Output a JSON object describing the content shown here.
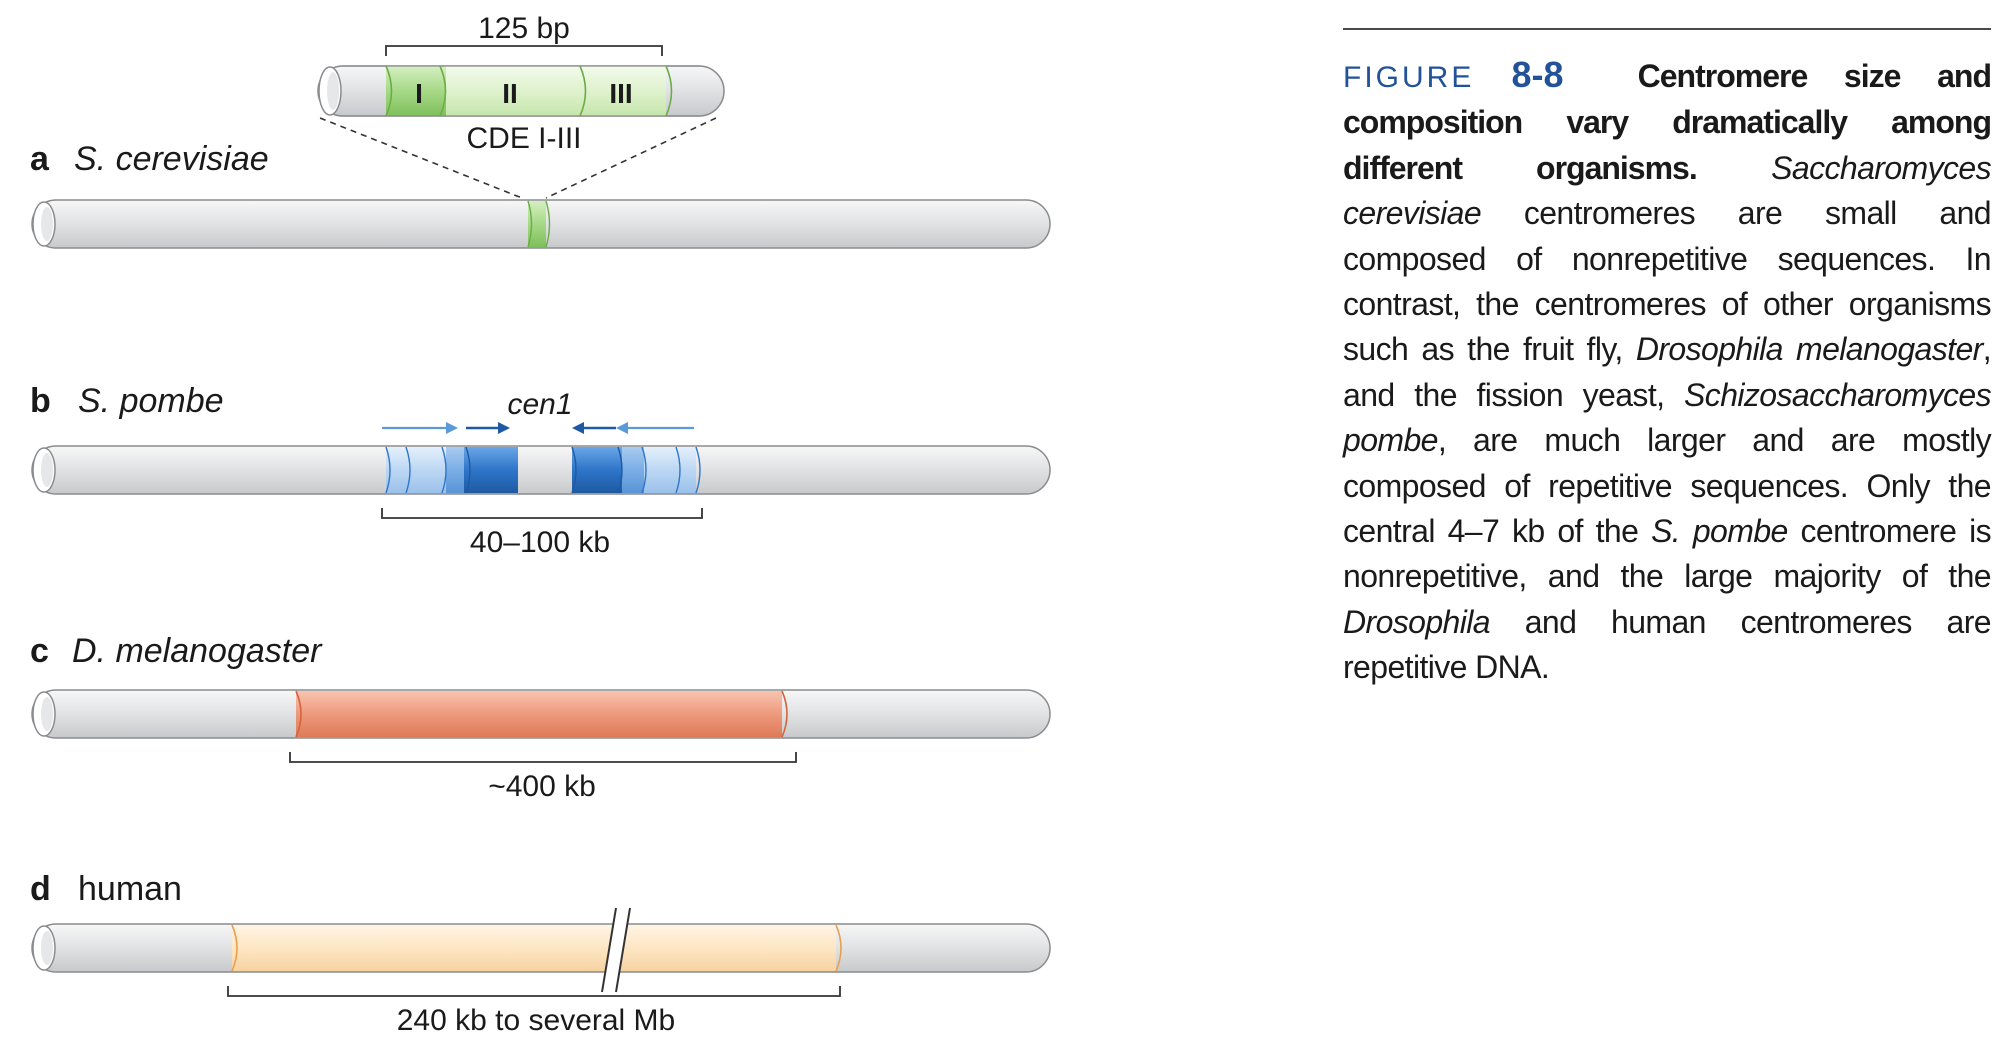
{
  "panels": {
    "a": {
      "letter": "a",
      "organism": "S. cerevisiae",
      "bracket": "125 bp",
      "region": "CDE I-III",
      "cde": [
        "I",
        "II",
        "III"
      ]
    },
    "b": {
      "letter": "b",
      "organism": "S. pombe",
      "region": "cen1",
      "bracket": "40–100 kb"
    },
    "c": {
      "letter": "c",
      "organism": "D. melanogaster",
      "bracket": "~400 kb"
    },
    "d": {
      "letter": "d",
      "organism": "human",
      "bracket": "240 kb to several Mb"
    }
  },
  "caption": {
    "figure_label": "FIGURE",
    "figure_number": "8-8",
    "title": "Centromere size and composition vary dramatically among different organisms.",
    "s1_species": "Saccharomyces cerevisiae",
    "s1_rest": "centromeres are small and composed of nonrepetitive sequences. In contrast, the centromeres of other organisms such as the fruit fly,",
    "s2_species": "Drosophila melanogaster",
    "s2_mid": ", and the fission yeast,",
    "s2_species2": "Schizosaccharomyces pombe",
    "s2_rest": ", are much larger and are mostly composed of repetitive sequences. Only the central 4–7 kb of the",
    "s3_species": "S. pombe",
    "s3_mid": "centromere is nonrepetitive, and the large majority of the",
    "s3_species2": "Drosophila",
    "s3_rest": "and human centromeres are repetitive DNA."
  },
  "colors": {
    "chromosome": "#e3e4e6",
    "cerevisiae": "#9fd37e",
    "pombe": "#2e75c9",
    "pombe_light": "#b9d5f3",
    "melanogaster": "#ea8a6a",
    "human": "#fde6c4",
    "caption_accent": "#22529a"
  }
}
